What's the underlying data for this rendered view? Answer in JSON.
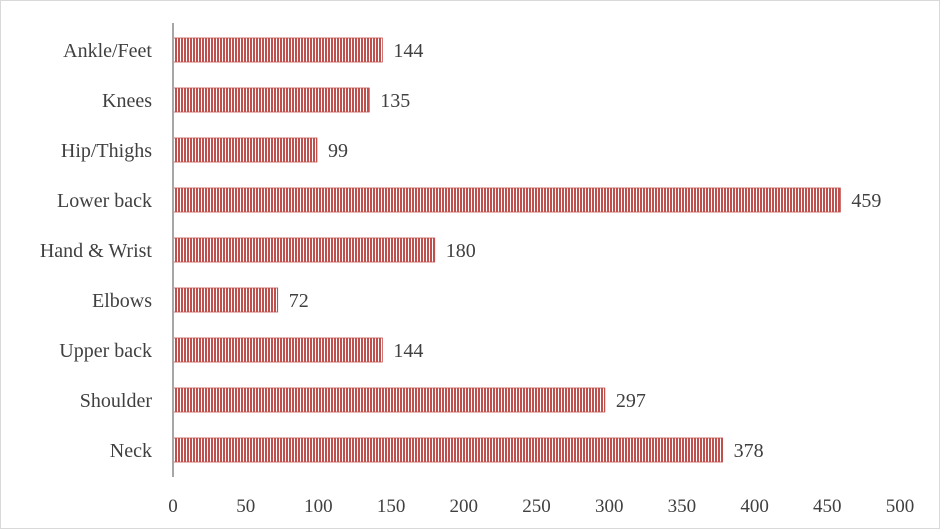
{
  "chart_data": {
    "type": "bar",
    "orientation": "horizontal",
    "categories": [
      "Ankle/Feet",
      "Knees",
      "Hip/Thighs",
      "Lower back",
      "Hand & Wrist",
      "Elbows",
      "Upper back",
      "Shoulder",
      "Neck"
    ],
    "values": [
      144,
      135,
      99,
      459,
      180,
      72,
      144,
      297,
      378
    ],
    "data_labels": [
      "144",
      "135",
      "99",
      "459",
      "180",
      "72",
      "144",
      "297",
      "378"
    ],
    "xlim": [
      0,
      500
    ],
    "xticks": [
      0,
      50,
      100,
      150,
      200,
      250,
      300,
      350,
      400,
      450,
      500
    ],
    "title": "",
    "xlabel": "",
    "ylabel": "",
    "grid": false,
    "legend": "none",
    "bar_color": "#c0504d",
    "bar_pattern": "vertical-stripes"
  }
}
